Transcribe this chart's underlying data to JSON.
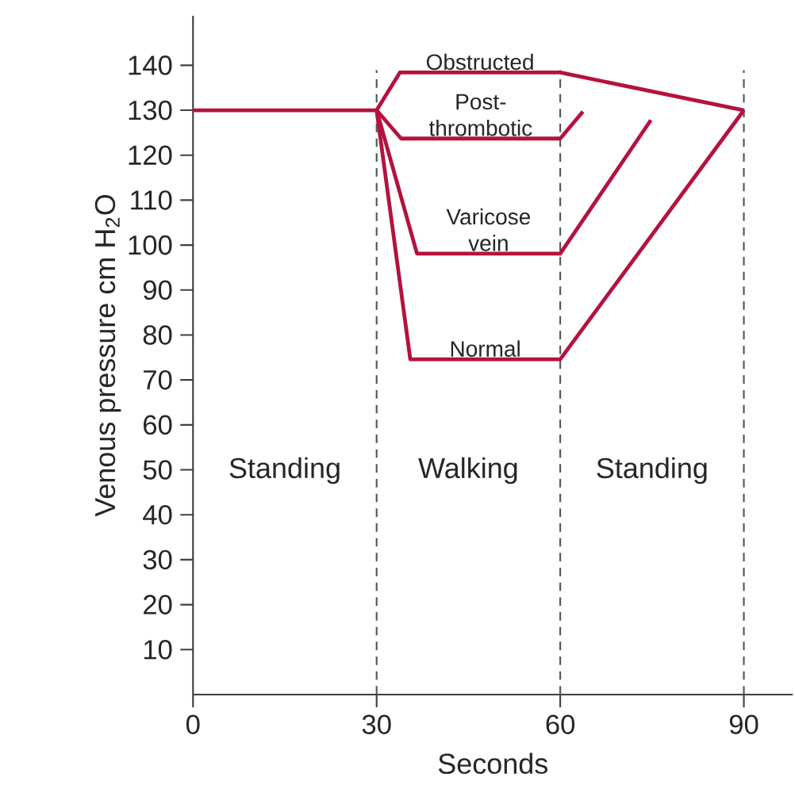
{
  "chart_data": {
    "type": "line",
    "xlabel": "Seconds",
    "ylabel": "Venous pressure cm H$_{2}$O",
    "xlim": [
      0,
      98
    ],
    "ylim": [
      0,
      151
    ],
    "xticks": [
      0,
      30,
      60,
      90
    ],
    "yticks": [
      10,
      20,
      30,
      40,
      50,
      60,
      70,
      80,
      90,
      100,
      110,
      120,
      130,
      140
    ],
    "grid": false,
    "legend": false,
    "series": [
      {
        "color": "#b5123e",
        "x": [
          0,
          30
        ],
        "values": [
          130,
          130
        ]
      },
      {
        "name": "Obstructed",
        "color": "#b5123e",
        "x": [
          30,
          33.8,
          60,
          90
        ],
        "values": [
          130,
          138.4,
          138.4,
          130
        ]
      },
      {
        "name": "Post-thrombotic",
        "color": "#b5123e",
        "x": [
          30,
          34,
          60,
          63.7
        ],
        "values": [
          130,
          123.7,
          123.7,
          129.7
        ]
      },
      {
        "name": "Varicose vein",
        "color": "#b5123e",
        "x": [
          30,
          36.6,
          60,
          74.8
        ],
        "values": [
          130,
          98.1,
          98.1,
          127.8
        ]
      },
      {
        "name": "Normal",
        "color": "#b5123e",
        "x": [
          30,
          35.5,
          60,
          90
        ],
        "values": [
          130,
          74.6,
          74.6,
          130
        ]
      }
    ],
    "ref_lines": [
      {
        "axis": "x",
        "value": 30,
        "color": "#555555",
        "line_style": "dashed"
      },
      {
        "axis": "x",
        "value": 60,
        "color": "#555555",
        "line_style": "dashed"
      },
      {
        "axis": "x",
        "value": 90,
        "color": "#555555",
        "line_style": "dashed"
      }
    ],
    "annotations": [
      "Standing",
      "Walking",
      "Standing"
    ]
  }
}
